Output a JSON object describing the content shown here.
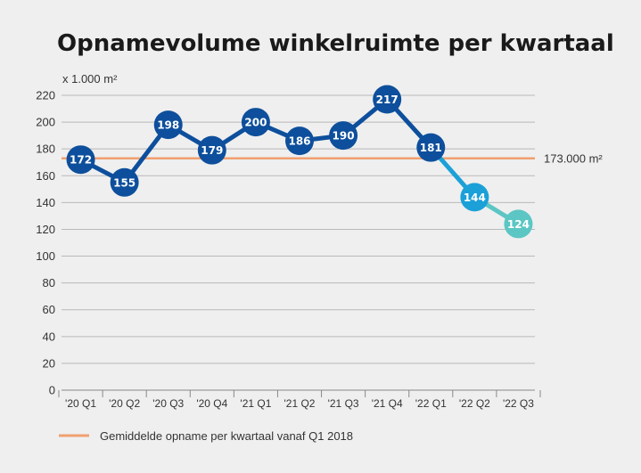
{
  "chart_data": {
    "type": "line",
    "title": "Opnamevolume winkelruimte per kwartaal",
    "ylabel": "x 1.000 m²",
    "xlabel": "",
    "ylim": [
      0,
      220
    ],
    "yticks": [
      0,
      20,
      40,
      60,
      80,
      100,
      120,
      140,
      160,
      180,
      200,
      220
    ],
    "grid": true,
    "categories": [
      "'20 Q1",
      "'20 Q2",
      "'20 Q3",
      "'20 Q4",
      "'21 Q1",
      "'21 Q2",
      "'21 Q3",
      "'21 Q4",
      "'22 Q1",
      "'22 Q2",
      "'22 Q3"
    ],
    "series": [
      {
        "name": "Opnamevolume",
        "values": [
          172,
          155,
          198,
          179,
          200,
          186,
          190,
          217,
          181,
          144,
          124
        ],
        "point_colors": [
          "#0d4f9c",
          "#0d4f9c",
          "#0d4f9c",
          "#0d4f9c",
          "#0d4f9c",
          "#0d4f9c",
          "#0d4f9c",
          "#0d4f9c",
          "#0d4f9c",
          "#1ba0d8",
          "#5cc6c4"
        ]
      }
    ],
    "reference_line": {
      "value": 173,
      "label": "173.000 m²",
      "color": "#f0a070"
    },
    "legend": {
      "position": "bottom-left",
      "label": "Gemiddelde opname per kwartaal vanaf Q1 2018"
    }
  }
}
